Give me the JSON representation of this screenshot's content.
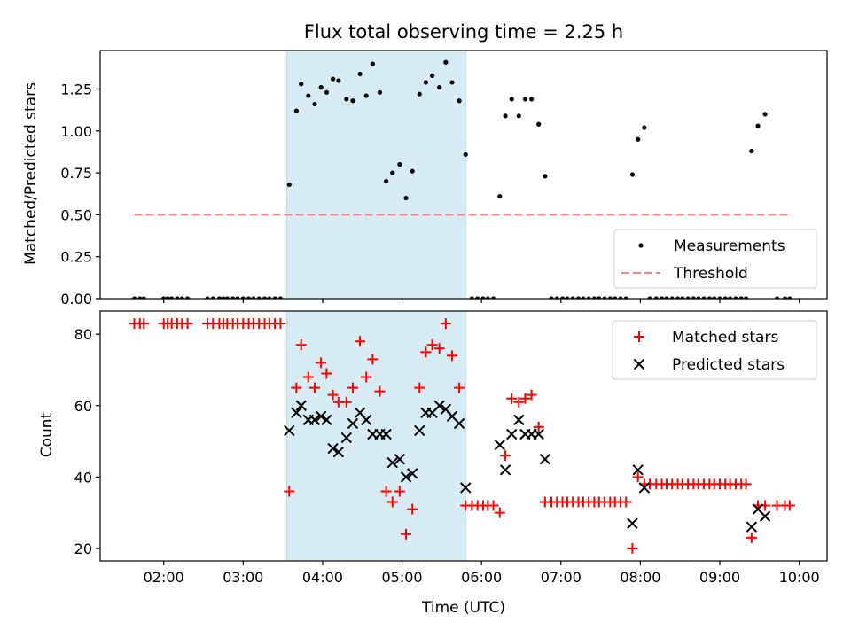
{
  "chart_data": [
    {
      "type": "scatter",
      "title": "Flux total observing time = 2.25 h",
      "xlabel": "",
      "ylabel": "Matched/Predicted stars",
      "xlim_hours": [
        1.2,
        10.35
      ],
      "ylim": [
        0,
        1.48
      ],
      "yticks": [
        "0.00",
        "0.25",
        "0.50",
        "0.75",
        "1.00",
        "1.25"
      ],
      "xticks": [
        "02:00",
        "03:00",
        "04:00",
        "05:00",
        "06:00",
        "07:00",
        "08:00",
        "09:00",
        "10:00"
      ],
      "shaded_interval_hours": [
        3.55,
        5.8
      ],
      "shaded_color": "#add8e6",
      "legend_position": "lower right",
      "series": [
        {
          "name": "Measurements",
          "color": "#000000",
          "points": [
            [
              1.63,
              0
            ],
            [
              1.7,
              0
            ],
            [
              1.75,
              0
            ],
            [
              2.0,
              0
            ],
            [
              2.05,
              0
            ],
            [
              2.1,
              0
            ],
            [
              2.17,
              0
            ],
            [
              2.23,
              0
            ],
            [
              2.3,
              0
            ],
            [
              2.55,
              0
            ],
            [
              2.62,
              0
            ],
            [
              2.7,
              0
            ],
            [
              2.75,
              0
            ],
            [
              2.8,
              0
            ],
            [
              2.87,
              0
            ],
            [
              2.93,
              0
            ],
            [
              3.0,
              0
            ],
            [
              3.07,
              0
            ],
            [
              3.13,
              0
            ],
            [
              3.2,
              0
            ],
            [
              3.27,
              0
            ],
            [
              3.33,
              0
            ],
            [
              3.4,
              0
            ],
            [
              3.47,
              0
            ],
            [
              3.58,
              0.68
            ],
            [
              3.67,
              1.12
            ],
            [
              3.73,
              1.28
            ],
            [
              3.82,
              1.21
            ],
            [
              3.9,
              1.16
            ],
            [
              3.98,
              1.26
            ],
            [
              4.05,
              1.23
            ],
            [
              4.13,
              1.31
            ],
            [
              4.2,
              1.3
            ],
            [
              4.3,
              1.19
            ],
            [
              4.38,
              1.18
            ],
            [
              4.47,
              1.34
            ],
            [
              4.55,
              1.21
            ],
            [
              4.63,
              1.4
            ],
            [
              4.72,
              1.23
            ],
            [
              4.8,
              0.7
            ],
            [
              4.88,
              0.75
            ],
            [
              4.97,
              0.8
            ],
            [
              5.05,
              0.6
            ],
            [
              5.13,
              0.76
            ],
            [
              5.22,
              1.22
            ],
            [
              5.3,
              1.29
            ],
            [
              5.38,
              1.33
            ],
            [
              5.47,
              1.26
            ],
            [
              5.55,
              1.41
            ],
            [
              5.63,
              1.29
            ],
            [
              5.72,
              1.18
            ],
            [
              5.8,
              0.86
            ],
            [
              5.88,
              0
            ],
            [
              5.95,
              0
            ],
            [
              6.02,
              0
            ],
            [
              6.08,
              0
            ],
            [
              6.15,
              0
            ],
            [
              6.23,
              0.61
            ],
            [
              6.3,
              1.09
            ],
            [
              6.38,
              1.19
            ],
            [
              6.47,
              1.09
            ],
            [
              6.55,
              1.19
            ],
            [
              6.63,
              1.19
            ],
            [
              6.72,
              1.04
            ],
            [
              6.8,
              0.73
            ],
            [
              6.88,
              0
            ],
            [
              6.95,
              0
            ],
            [
              7.02,
              0
            ],
            [
              7.08,
              0
            ],
            [
              7.15,
              0
            ],
            [
              7.22,
              0
            ],
            [
              7.28,
              0
            ],
            [
              7.35,
              0
            ],
            [
              7.42,
              0
            ],
            [
              7.48,
              0
            ],
            [
              7.55,
              0
            ],
            [
              7.62,
              0
            ],
            [
              7.68,
              0
            ],
            [
              7.75,
              0
            ],
            [
              7.82,
              0
            ],
            [
              7.9,
              0.74
            ],
            [
              7.97,
              0.95
            ],
            [
              8.05,
              1.02
            ],
            [
              8.12,
              0
            ],
            [
              8.2,
              0
            ],
            [
              8.27,
              0
            ],
            [
              8.33,
              0
            ],
            [
              8.4,
              0
            ],
            [
              8.47,
              0
            ],
            [
              8.53,
              0
            ],
            [
              8.6,
              0
            ],
            [
              8.67,
              0
            ],
            [
              8.73,
              0
            ],
            [
              8.8,
              0
            ],
            [
              8.87,
              0
            ],
            [
              8.93,
              0
            ],
            [
              9.0,
              0
            ],
            [
              9.07,
              0
            ],
            [
              9.13,
              0
            ],
            [
              9.2,
              0
            ],
            [
              9.27,
              0
            ],
            [
              9.33,
              0
            ],
            [
              9.4,
              0.88
            ],
            [
              9.48,
              1.03
            ],
            [
              9.57,
              1.1
            ],
            [
              9.72,
              0
            ],
            [
              9.82,
              0
            ],
            [
              9.88,
              0
            ]
          ]
        },
        {
          "name": "Threshold",
          "color": "#ff8080",
          "line": "dashed",
          "x": [
            1.63,
            9.88
          ],
          "y": [
            0.5,
            0.5
          ]
        }
      ]
    },
    {
      "type": "scatter",
      "title": "",
      "xlabel": "Time (UTC)",
      "ylabel": "Count",
      "xlim_hours": [
        1.2,
        10.35
      ],
      "ylim": [
        16.5,
        86.5
      ],
      "yticks": [
        "20",
        "40",
        "60",
        "80"
      ],
      "xticks": [
        "02:00",
        "03:00",
        "04:00",
        "05:00",
        "06:00",
        "07:00",
        "08:00",
        "09:00",
        "10:00"
      ],
      "shaded_interval_hours": [
        3.55,
        5.8
      ],
      "shaded_color": "#add8e6",
      "legend_position": "upper right",
      "series": [
        {
          "name": "Matched stars",
          "marker": "plus",
          "color": "#ff0000",
          "points": [
            [
              1.63,
              83
            ],
            [
              1.7,
              83
            ],
            [
              1.75,
              83
            ],
            [
              2.0,
              83
            ],
            [
              2.05,
              83
            ],
            [
              2.1,
              83
            ],
            [
              2.17,
              83
            ],
            [
              2.23,
              83
            ],
            [
              2.3,
              83
            ],
            [
              2.55,
              83
            ],
            [
              2.62,
              83
            ],
            [
              2.7,
              83
            ],
            [
              2.75,
              83
            ],
            [
              2.8,
              83
            ],
            [
              2.87,
              83
            ],
            [
              2.93,
              83
            ],
            [
              3.0,
              83
            ],
            [
              3.07,
              83
            ],
            [
              3.13,
              83
            ],
            [
              3.2,
              83
            ],
            [
              3.27,
              83
            ],
            [
              3.33,
              83
            ],
            [
              3.4,
              83
            ],
            [
              3.47,
              83
            ],
            [
              3.58,
              36
            ],
            [
              3.67,
              65
            ],
            [
              3.73,
              77
            ],
            [
              3.82,
              68
            ],
            [
              3.9,
              65
            ],
            [
              3.98,
              72
            ],
            [
              4.05,
              69
            ],
            [
              4.13,
              63
            ],
            [
              4.2,
              61
            ],
            [
              4.3,
              61
            ],
            [
              4.38,
              65
            ],
            [
              4.47,
              78
            ],
            [
              4.55,
              68
            ],
            [
              4.63,
              73
            ],
            [
              4.72,
              64
            ],
            [
              4.8,
              36
            ],
            [
              4.88,
              33
            ],
            [
              4.97,
              36
            ],
            [
              5.05,
              24
            ],
            [
              5.13,
              31
            ],
            [
              5.22,
              65
            ],
            [
              5.3,
              75
            ],
            [
              5.38,
              77
            ],
            [
              5.47,
              76
            ],
            [
              5.55,
              83
            ],
            [
              5.63,
              74
            ],
            [
              5.72,
              65
            ],
            [
              5.8,
              32
            ],
            [
              5.88,
              32
            ],
            [
              5.95,
              32
            ],
            [
              6.02,
              32
            ],
            [
              6.08,
              32
            ],
            [
              6.15,
              32
            ],
            [
              6.23,
              30
            ],
            [
              6.3,
              46
            ],
            [
              6.38,
              62
            ],
            [
              6.47,
              61
            ],
            [
              6.55,
              62
            ],
            [
              6.63,
              63
            ],
            [
              6.72,
              54
            ],
            [
              6.8,
              33
            ],
            [
              6.88,
              33
            ],
            [
              6.95,
              33
            ],
            [
              7.02,
              33
            ],
            [
              7.08,
              33
            ],
            [
              7.15,
              33
            ],
            [
              7.22,
              33
            ],
            [
              7.28,
              33
            ],
            [
              7.35,
              33
            ],
            [
              7.42,
              33
            ],
            [
              7.48,
              33
            ],
            [
              7.55,
              33
            ],
            [
              7.62,
              33
            ],
            [
              7.68,
              33
            ],
            [
              7.75,
              33
            ],
            [
              7.82,
              33
            ],
            [
              7.9,
              20
            ],
            [
              7.97,
              40
            ],
            [
              8.05,
              38
            ],
            [
              8.12,
              38
            ],
            [
              8.2,
              38
            ],
            [
              8.27,
              38
            ],
            [
              8.33,
              38
            ],
            [
              8.4,
              38
            ],
            [
              8.47,
              38
            ],
            [
              8.53,
              38
            ],
            [
              8.6,
              38
            ],
            [
              8.67,
              38
            ],
            [
              8.73,
              38
            ],
            [
              8.8,
              38
            ],
            [
              8.87,
              38
            ],
            [
              8.93,
              38
            ],
            [
              9.0,
              38
            ],
            [
              9.07,
              38
            ],
            [
              9.13,
              38
            ],
            [
              9.2,
              38
            ],
            [
              9.27,
              38
            ],
            [
              9.33,
              38
            ],
            [
              9.4,
              23
            ],
            [
              9.48,
              32
            ],
            [
              9.57,
              32
            ],
            [
              9.72,
              32
            ],
            [
              9.82,
              32
            ],
            [
              9.88,
              32
            ]
          ]
        },
        {
          "name": "Predicted stars",
          "marker": "x",
          "color": "#000000",
          "points": [
            [
              3.58,
              53
            ],
            [
              3.67,
              58
            ],
            [
              3.73,
              60
            ],
            [
              3.82,
              56
            ],
            [
              3.9,
              56
            ],
            [
              3.98,
              57
            ],
            [
              4.05,
              56
            ],
            [
              4.13,
              48
            ],
            [
              4.2,
              47
            ],
            [
              4.3,
              51
            ],
            [
              4.38,
              55
            ],
            [
              4.47,
              58
            ],
            [
              4.55,
              56
            ],
            [
              4.63,
              52
            ],
            [
              4.72,
              52
            ],
            [
              4.8,
              52
            ],
            [
              4.88,
              44
            ],
            [
              4.97,
              45
            ],
            [
              5.05,
              40
            ],
            [
              5.13,
              41
            ],
            [
              5.22,
              53
            ],
            [
              5.3,
              58
            ],
            [
              5.38,
              58
            ],
            [
              5.47,
              60
            ],
            [
              5.55,
              59
            ],
            [
              5.63,
              57
            ],
            [
              5.72,
              55
            ],
            [
              5.8,
              37
            ],
            [
              6.23,
              49
            ],
            [
              6.3,
              42
            ],
            [
              6.38,
              52
            ],
            [
              6.47,
              56
            ],
            [
              6.55,
              52
            ],
            [
              6.63,
              52
            ],
            [
              6.72,
              52
            ],
            [
              6.8,
              45
            ],
            [
              7.9,
              27
            ],
            [
              7.97,
              42
            ],
            [
              8.05,
              37
            ],
            [
              9.4,
              26
            ],
            [
              9.48,
              31
            ],
            [
              9.57,
              29
            ]
          ]
        }
      ]
    }
  ]
}
